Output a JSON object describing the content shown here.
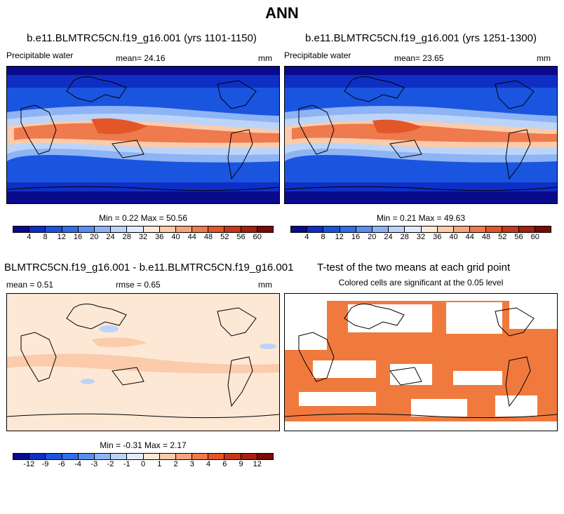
{
  "main_title": "ANN",
  "panels": {
    "top_left": {
      "title": "b.e11.BLMTRC5CN.f19_g16.001 (yrs 1101-1150)",
      "variable": "Precipitable water",
      "mean": "mean=  24.16",
      "units": "mm",
      "minmax": "Min =   0.22 Max =  50.56"
    },
    "top_right": {
      "title": "b.e11.BLMTRC5CN.f19_g16.001 (yrs 1251-1300)",
      "variable": "Precipitable water",
      "mean": "mean=  23.65",
      "units": "mm",
      "minmax": "Min =   0.21 Max =  49.63"
    },
    "bottom_left": {
      "title": "BLMTRC5CN.f19_g16.001 - b.e11.BLMTRC5CN.f19_g16.001",
      "mean": "mean =   0.51",
      "rmse": "rmse =   0.65",
      "units": "mm",
      "minmax": "Min =  -0.31 Max =   2.17"
    },
    "bottom_right": {
      "title": "T-test of the two means at each grid point",
      "subtitle": "Colored cells are significant at the 0.05 level"
    }
  },
  "colorbar_abs": {
    "colors": [
      "#0a0a8c",
      "#0f2fc4",
      "#1a55e0",
      "#2f6fe8",
      "#5a8ef0",
      "#8eb4f5",
      "#bcd4f8",
      "#e2ecfb",
      "#fde8d6",
      "#fbcbab",
      "#f6a57c",
      "#ee7a4d",
      "#e35627",
      "#c7371a",
      "#a5200f",
      "#7d0a07"
    ],
    "ticks": [
      "4",
      "8",
      "12",
      "16",
      "20",
      "24",
      "28",
      "32",
      "36",
      "40",
      "44",
      "48",
      "52",
      "56",
      "60"
    ]
  },
  "colorbar_diff": {
    "colors": [
      "#0a0a8c",
      "#0f2fc4",
      "#1a55e0",
      "#2f6fe8",
      "#5a8ef0",
      "#8eb4f5",
      "#bcd4f8",
      "#e2ecfb",
      "#fde8d6",
      "#fbcbab",
      "#f6a57c",
      "#ee7a4d",
      "#e35627",
      "#c7371a",
      "#a5200f",
      "#7d0a07"
    ],
    "ticks": [
      "-12",
      "-9",
      "-6",
      "-4",
      "-3",
      "-2",
      "-1",
      "0",
      "1",
      "2",
      "3",
      "4",
      "6",
      "9",
      "12"
    ]
  },
  "ttest_color": "#f07a3e"
}
